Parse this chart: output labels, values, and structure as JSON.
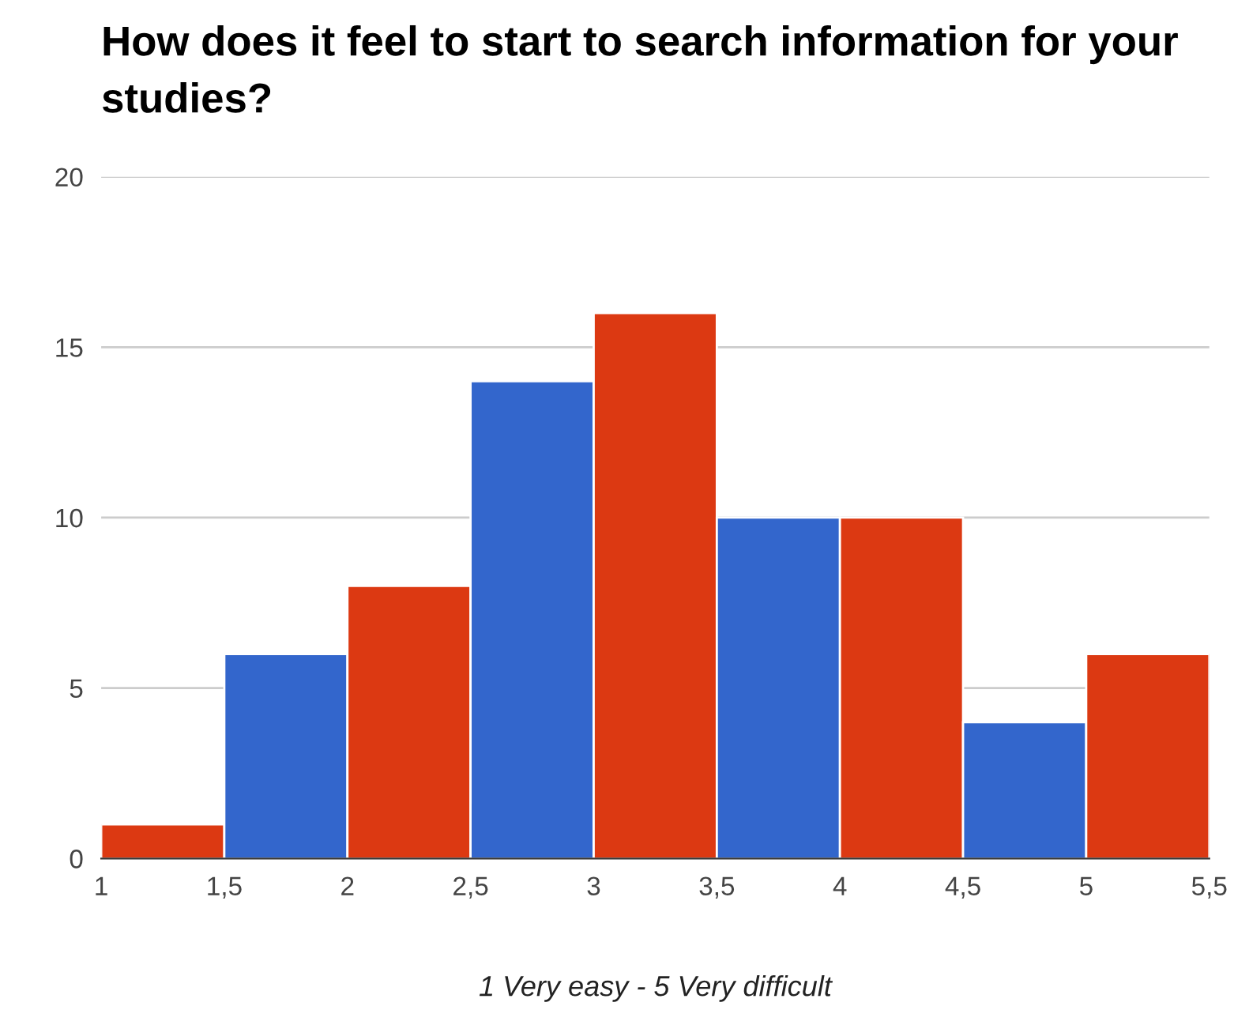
{
  "chart_data": {
    "type": "histogram",
    "title": "How does it feel to start to search information for your studies?",
    "xlabel": "1 Very easy - 5 Very difficult",
    "bins": [
      1,
      1.5,
      2,
      2.5,
      3,
      3.5,
      4,
      4.5,
      5,
      5.5
    ],
    "values": [
      1,
      6,
      8,
      14,
      16,
      10,
      10,
      4,
      6
    ],
    "colors": [
      "#dc3912",
      "#3366cc",
      "#dc3912",
      "#3366cc",
      "#dc3912",
      "#3366cc",
      "#dc3912",
      "#3366cc",
      "#dc3912"
    ],
    "xlim": [
      1,
      5.5
    ],
    "ylim": [
      0,
      20
    ],
    "xticks": [
      1,
      {
        "value": 1.5,
        "label": "1,5"
      },
      2,
      {
        "value": 2.5,
        "label": "2,5"
      },
      3,
      {
        "value": 3.5,
        "label": "3,5"
      },
      4,
      {
        "value": 4.5,
        "label": "4,5"
      },
      5,
      {
        "value": 5.5,
        "label": "5,5"
      }
    ],
    "yticks": [
      0,
      5,
      10,
      15,
      20
    ],
    "grid": "y"
  }
}
